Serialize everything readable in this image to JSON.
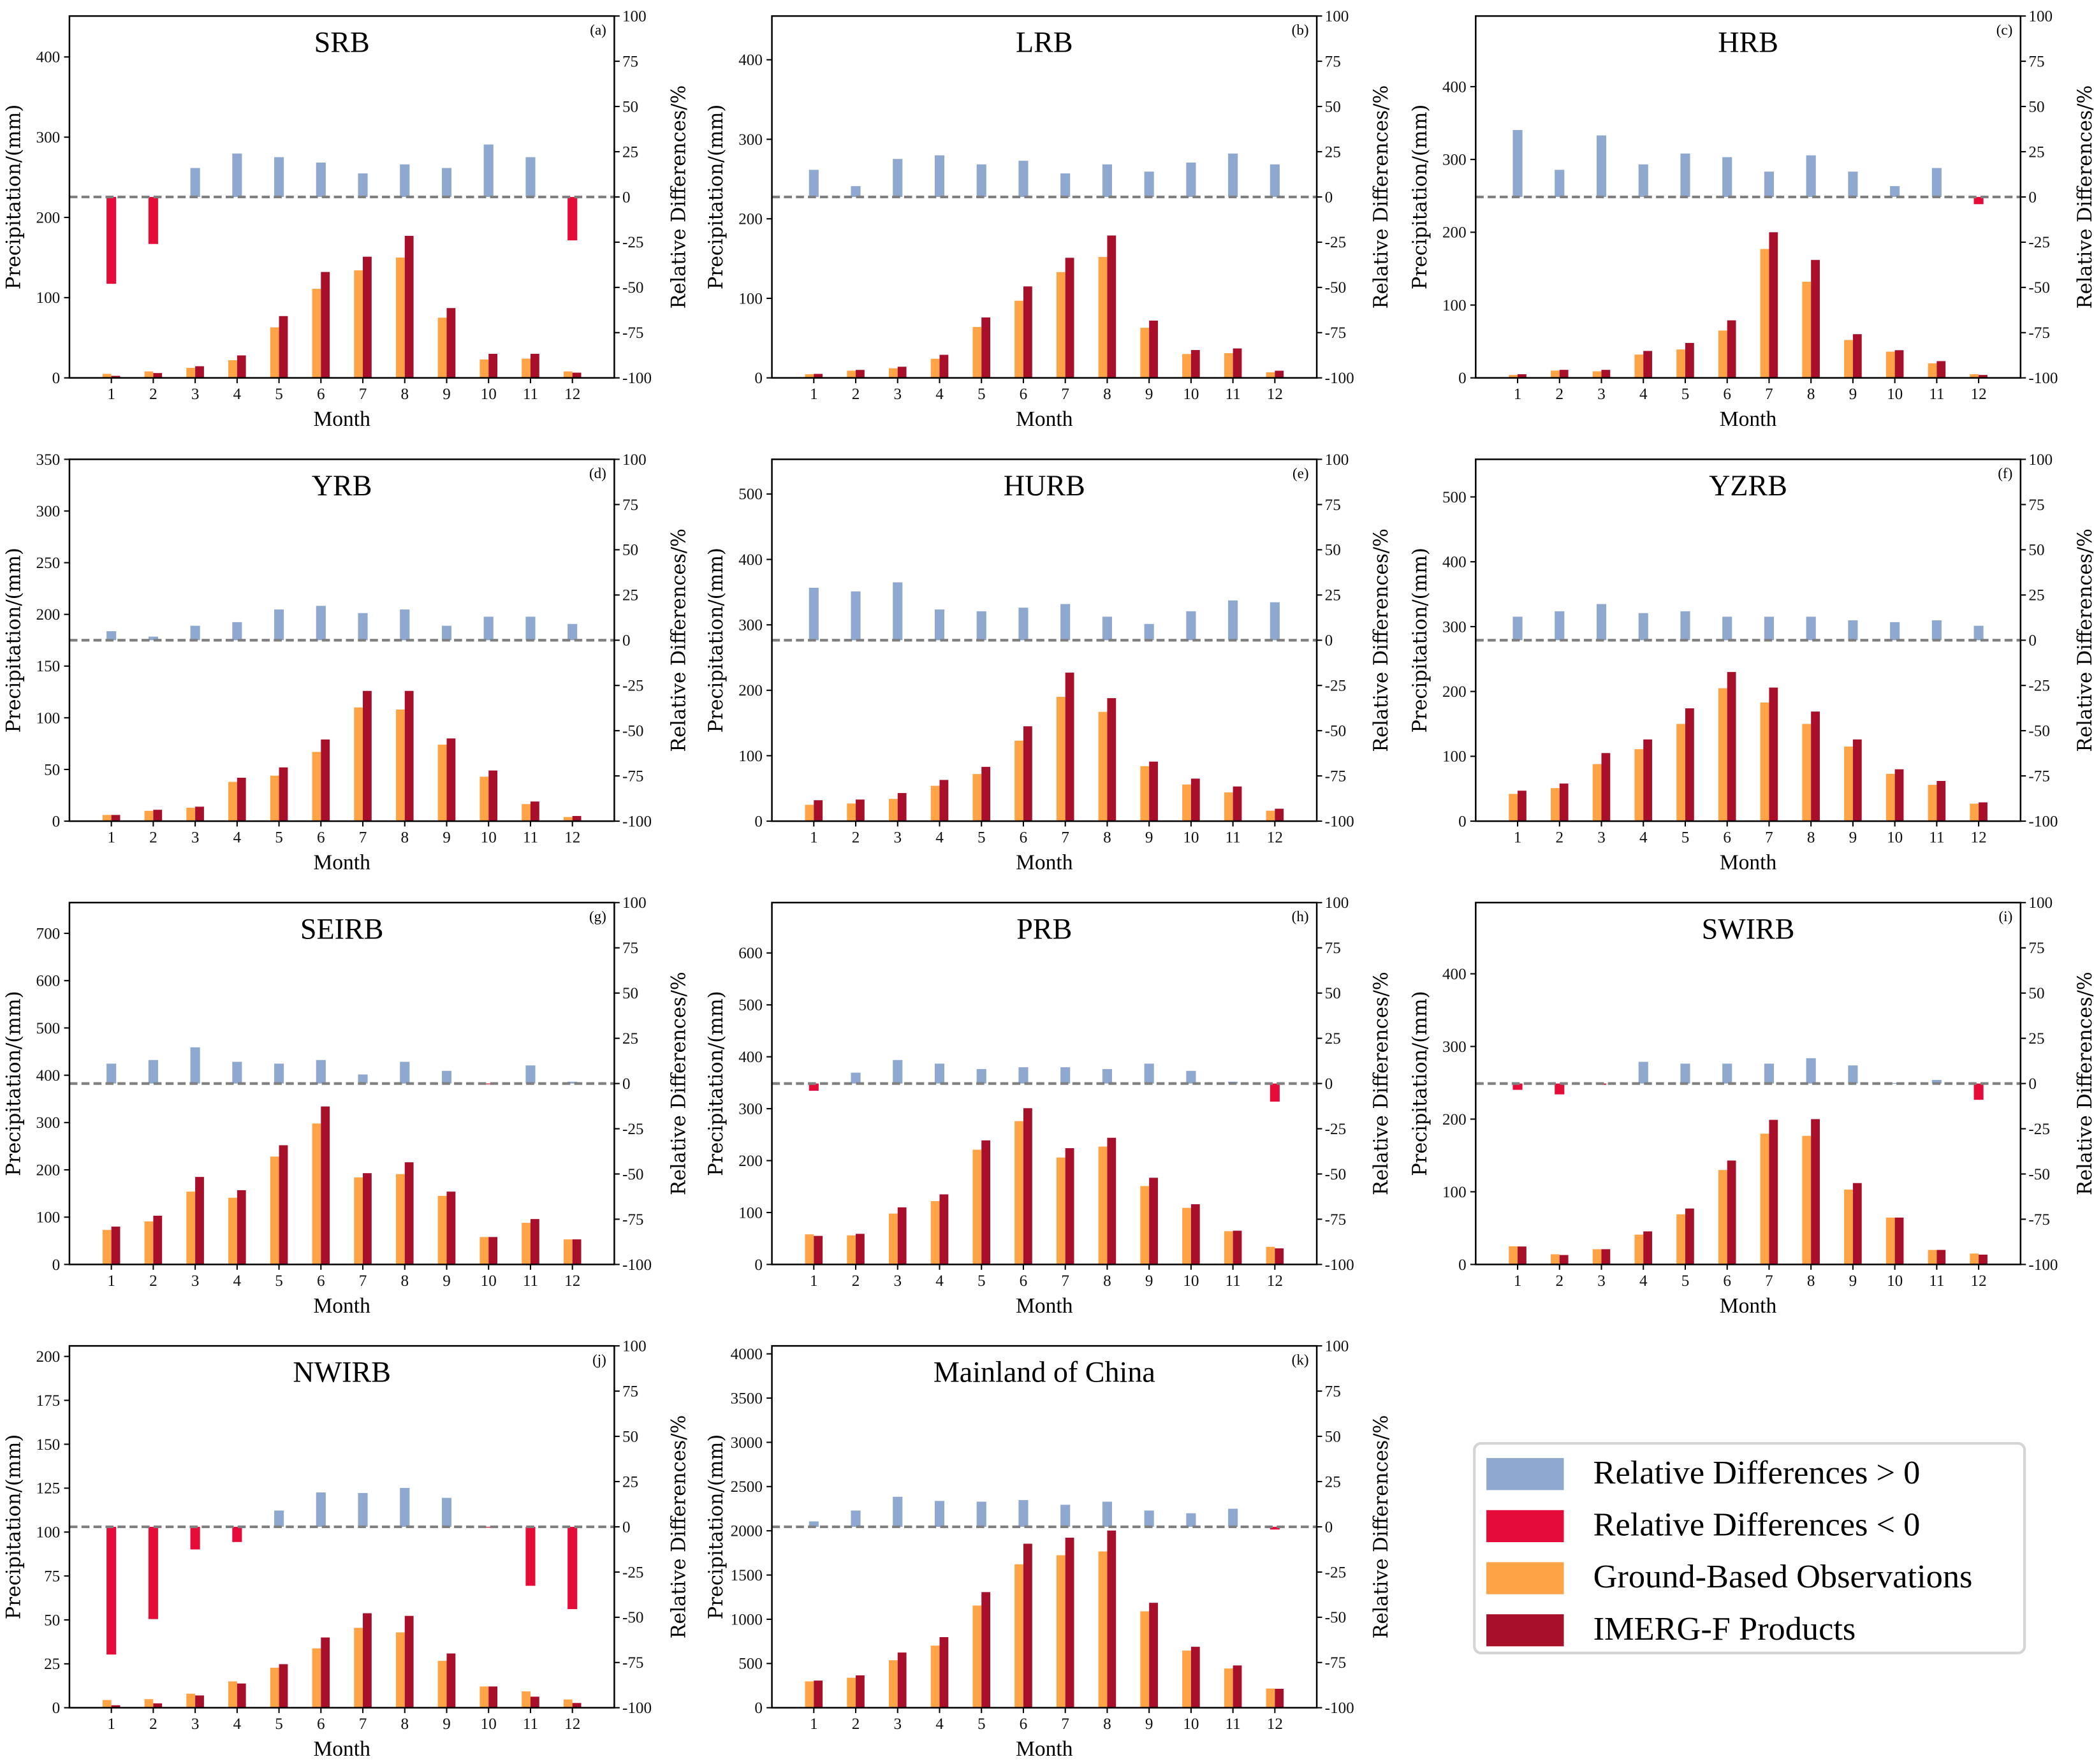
{
  "colors": {
    "rd_positive": "#8ea8cf",
    "rd_negative": "#e60c3a",
    "ground": "#ffa347",
    "imerg": "#a80f2b",
    "zero_line": "#808080"
  },
  "legend": [
    {
      "label": "Relative Differences > 0",
      "color": "#8ea8cf"
    },
    {
      "label": "Relative Differences < 0",
      "color": "#e60c3a"
    },
    {
      "label": "Ground-Based Observations",
      "color": "#ffa347"
    },
    {
      "label": "IMERG-F Products",
      "color": "#a80f2b"
    }
  ],
  "chart_data": [
    {
      "id": "a",
      "panel_label": "(a)",
      "title": "SRB",
      "type": "bar",
      "xlabel": "Month",
      "ylabel": "Precipitation/(mm)",
      "y2label": "Relative Differences/%",
      "categories": [
        1,
        2,
        3,
        4,
        5,
        6,
        7,
        8,
        9,
        10,
        11,
        12
      ],
      "ylim": [
        0,
        451
      ],
      "yticks": [
        0,
        100,
        200,
        300,
        400
      ],
      "y2lim": [
        -100,
        100
      ],
      "y2ticks": [
        -100,
        -75,
        -50,
        -25,
        0,
        25,
        50,
        75,
        100
      ],
      "series": [
        {
          "name": "Ground-Based Observations",
          "values": [
            5,
            8,
            12.5,
            22,
            63,
            111,
            134,
            150,
            75,
            23,
            24,
            8
          ]
        },
        {
          "name": "IMERG-F Products",
          "values": [
            2.5,
            6,
            14.5,
            28,
            77,
            132,
            151,
            177,
            87,
            30,
            30,
            6.5
          ]
        },
        {
          "name": "Relative Differences",
          "values": [
            -48,
            -26,
            16,
            24,
            22,
            19,
            13,
            18,
            16,
            29,
            22,
            -24
          ]
        }
      ]
    },
    {
      "id": "b",
      "panel_label": "(b)",
      "title": "LRB",
      "type": "bar",
      "xlabel": "Month",
      "ylabel": "Precipitation/(mm)",
      "y2label": "Relative Differences/%",
      "categories": [
        1,
        2,
        3,
        4,
        5,
        6,
        7,
        8,
        9,
        10,
        11,
        12
      ],
      "ylim": [
        0,
        455
      ],
      "yticks": [
        0,
        100,
        200,
        300,
        400
      ],
      "y2lim": [
        -100,
        100
      ],
      "y2ticks": [
        -100,
        -75,
        -50,
        -25,
        0,
        25,
        50,
        75,
        100
      ],
      "series": [
        {
          "name": "Ground-Based Observations",
          "values": [
            4.6,
            9,
            12,
            24,
            64,
            97,
            133,
            152,
            63,
            30,
            31,
            7
          ]
        },
        {
          "name": "IMERG-F Products",
          "values": [
            5,
            10,
            14,
            29,
            76,
            115,
            151,
            179,
            72,
            35,
            37,
            9
          ]
        },
        {
          "name": "Relative Differences",
          "values": [
            15,
            6,
            21,
            23,
            18,
            20,
            13,
            18,
            14,
            19,
            24,
            18
          ]
        }
      ]
    },
    {
      "id": "c",
      "panel_label": "(c)",
      "title": "HRB",
      "type": "bar",
      "xlabel": "Month",
      "ylabel": "Precipitation/(mm)",
      "y2label": "Relative Differences/%",
      "categories": [
        1,
        2,
        3,
        4,
        5,
        6,
        7,
        8,
        9,
        10,
        11,
        12
      ],
      "ylim": [
        0,
        497
      ],
      "yticks": [
        0,
        100,
        200,
        300,
        400
      ],
      "y2lim": [
        -100,
        100
      ],
      "y2ticks": [
        -100,
        -75,
        -50,
        -25,
        0,
        25,
        50,
        75,
        100
      ],
      "series": [
        {
          "name": "Ground-Based Observations",
          "values": [
            4,
            10,
            9,
            32,
            39,
            65,
            177,
            132,
            52,
            36,
            20,
            5
          ]
        },
        {
          "name": "IMERG-F Products",
          "values": [
            5,
            11,
            11,
            37,
            48,
            79,
            200,
            162,
            60,
            38,
            23,
            4
          ]
        },
        {
          "name": "Relative Differences",
          "values": [
            37,
            15,
            34,
            18,
            24,
            22,
            14,
            23,
            14,
            6,
            16,
            -4
          ]
        }
      ]
    },
    {
      "id": "d",
      "panel_label": "(d)",
      "title": "YRB",
      "type": "bar",
      "xlabel": "Month",
      "ylabel": "Precipitation/(mm)",
      "y2label": "Relative Differences/%",
      "categories": [
        1,
        2,
        3,
        4,
        5,
        6,
        7,
        8,
        9,
        10,
        11,
        12
      ],
      "ylim": [
        0,
        350
      ],
      "yticks": [
        0,
        50,
        100,
        150,
        200,
        250,
        300,
        350
      ],
      "y2lim": [
        -100,
        100
      ],
      "y2ticks": [
        -100,
        -75,
        -50,
        -25,
        0,
        25,
        50,
        75,
        100
      ],
      "series": [
        {
          "name": "Ground-Based Observations",
          "values": [
            6,
            10,
            13,
            38,
            44,
            67,
            110,
            108,
            74,
            43,
            16.5,
            4
          ]
        },
        {
          "name": "IMERG-F Products",
          "values": [
            6,
            11,
            14,
            42,
            52,
            79,
            126,
            126,
            80,
            49,
            19,
            5
          ]
        },
        {
          "name": "Relative Differences",
          "values": [
            5,
            2,
            8,
            10,
            17,
            19,
            15,
            17,
            8,
            13,
            13,
            9
          ]
        }
      ]
    },
    {
      "id": "e",
      "panel_label": "(e)",
      "title": "HURB",
      "type": "bar",
      "xlabel": "Month",
      "ylabel": "Precipitation/(mm)",
      "y2label": "Relative Differences/%",
      "categories": [
        1,
        2,
        3,
        4,
        5,
        6,
        7,
        8,
        9,
        10,
        11,
        12
      ],
      "ylim": [
        0,
        553
      ],
      "yticks": [
        0,
        100,
        200,
        300,
        400,
        500
      ],
      "y2lim": [
        -100,
        100
      ],
      "y2ticks": [
        -100,
        -75,
        -50,
        -25,
        0,
        25,
        50,
        75,
        100
      ],
      "series": [
        {
          "name": "Ground-Based Observations",
          "values": [
            25,
            27,
            34,
            54,
            72,
            123,
            190,
            167,
            84,
            56,
            44,
            16
          ]
        },
        {
          "name": "IMERG-F Products",
          "values": [
            32,
            33,
            43,
            63,
            83,
            145,
            227,
            188,
            91,
            65,
            53,
            19
          ]
        },
        {
          "name": "Relative Differences",
          "values": [
            29,
            27,
            32,
            17,
            16,
            18,
            20,
            13,
            9,
            16,
            22,
            21
          ]
        }
      ]
    },
    {
      "id": "f",
      "panel_label": "(f)",
      "title": "YZRB",
      "type": "bar",
      "xlabel": "Month",
      "ylabel": "Precipitation/(mm)",
      "y2label": "Relative Differences/%",
      "categories": [
        1,
        2,
        3,
        4,
        5,
        6,
        7,
        8,
        9,
        10,
        11,
        12
      ],
      "ylim": [
        0,
        558
      ],
      "yticks": [
        0,
        100,
        200,
        300,
        400,
        500
      ],
      "y2lim": [
        -100,
        100
      ],
      "y2ticks": [
        -100,
        -75,
        -50,
        -25,
        0,
        25,
        50,
        75,
        100
      ],
      "series": [
        {
          "name": "Ground-Based Observations",
          "values": [
            42,
            51,
            88,
            111,
            150,
            205,
            183,
            150,
            115,
            73,
            56,
            27
          ]
        },
        {
          "name": "IMERG-F Products",
          "values": [
            47,
            58,
            105,
            126,
            174,
            230,
            206,
            169,
            126,
            80,
            62,
            29
          ]
        },
        {
          "name": "Relative Differences",
          "values": [
            13,
            16,
            20,
            15,
            16,
            13,
            13,
            13,
            11,
            10,
            11,
            8
          ]
        }
      ]
    },
    {
      "id": "g",
      "panel_label": "(g)",
      "title": "SEIRB",
      "type": "bar",
      "xlabel": "Month",
      "ylabel": "Precipitation/(mm)",
      "y2label": "Relative Differences/%",
      "categories": [
        1,
        2,
        3,
        4,
        5,
        6,
        7,
        8,
        9,
        10,
        11,
        12
      ],
      "ylim": [
        0,
        765
      ],
      "yticks": [
        0,
        100,
        200,
        300,
        400,
        500,
        600,
        700
      ],
      "y2lim": [
        -100,
        100
      ],
      "y2ticks": [
        -100,
        -75,
        -50,
        -25,
        0,
        25,
        50,
        75,
        100
      ],
      "series": [
        {
          "name": "Ground-Based Observations",
          "values": [
            73,
            91,
            154,
            141,
            228,
            298,
            184,
            191,
            145,
            58,
            88,
            53
          ]
        },
        {
          "name": "IMERG-F Products",
          "values": [
            80,
            103,
            185,
            157,
            252,
            334,
            193,
            216,
            154,
            58,
            96,
            53
          ]
        },
        {
          "name": "Relative Differences",
          "values": [
            11,
            13,
            20,
            12,
            11,
            13,
            5,
            12,
            7,
            -0.3,
            10,
            1
          ]
        }
      ]
    },
    {
      "id": "h",
      "panel_label": "(h)",
      "title": "PRB",
      "type": "bar",
      "xlabel": "Month",
      "ylabel": "Precipitation/(mm)",
      "y2label": "Relative Differences/%",
      "categories": [
        1,
        2,
        3,
        4,
        5,
        6,
        7,
        8,
        9,
        10,
        11,
        12
      ],
      "ylim": [
        0,
        697
      ],
      "yticks": [
        0,
        100,
        200,
        300,
        400,
        500,
        600
      ],
      "y2lim": [
        -100,
        100
      ],
      "y2ticks": [
        -100,
        -75,
        -50,
        -25,
        0,
        25,
        50,
        75,
        100
      ],
      "series": [
        {
          "name": "Ground-Based Observations",
          "values": [
            58,
            56,
            98,
            122,
            221,
            276,
            206,
            227,
            151,
            109,
            64,
            34
          ]
        },
        {
          "name": "IMERG-F Products",
          "values": [
            55,
            59,
            110,
            135,
            239,
            301,
            224,
            244,
            167,
            116,
            65,
            31
          ]
        },
        {
          "name": "Relative Differences",
          "values": [
            -4,
            6,
            13,
            11,
            8,
            9,
            9,
            8,
            11,
            7,
            1,
            -10
          ]
        }
      ]
    },
    {
      "id": "i",
      "panel_label": "(i)",
      "title": "SWIRB",
      "type": "bar",
      "xlabel": "Month",
      "ylabel": "Precipitation/(mm)",
      "y2label": "Relative Differences/%",
      "categories": [
        1,
        2,
        3,
        4,
        5,
        6,
        7,
        8,
        9,
        10,
        11,
        12
      ],
      "ylim": [
        0,
        498
      ],
      "yticks": [
        0,
        100,
        200,
        300,
        400
      ],
      "y2lim": [
        -100,
        100
      ],
      "y2ticks": [
        -100,
        -75,
        -50,
        -25,
        0,
        25,
        50,
        75,
        100
      ],
      "series": [
        {
          "name": "Ground-Based Observations",
          "values": [
            25,
            14,
            21,
            41,
            69,
            130,
            180,
            177,
            103,
            64.5,
            20,
            15
          ]
        },
        {
          "name": "IMERG-F Products",
          "values": [
            24.7,
            13,
            21,
            45.5,
            77,
            143,
            199,
            200,
            112,
            64.5,
            20,
            13.5
          ]
        },
        {
          "name": "Relative Differences",
          "values": [
            -3.5,
            -6,
            -0.7,
            12,
            11,
            11,
            11,
            14,
            10,
            0.3,
            2,
            -9
          ]
        }
      ]
    },
    {
      "id": "j",
      "panel_label": "(j)",
      "title": "NWIRB",
      "type": "bar",
      "xlabel": "Month",
      "ylabel": "Precipitation/(mm)",
      "y2label": "Relative Differences/%",
      "categories": [
        1,
        2,
        3,
        4,
        5,
        6,
        7,
        8,
        9,
        10,
        11,
        12
      ],
      "ylim": [
        0,
        206
      ],
      "yticks": [
        0,
        25,
        50,
        75,
        100,
        125,
        150,
        175,
        200
      ],
      "y2lim": [
        -100,
        100
      ],
      "y2ticks": [
        -100,
        -75,
        -50,
        -25,
        0,
        25,
        50,
        75,
        100
      ],
      "series": [
        {
          "name": "Ground-Based Observations",
          "values": [
            4.4,
            4.9,
            8,
            15,
            22.8,
            33.8,
            45.5,
            42.9,
            26.7,
            12.1,
            9.3,
            4.7
          ]
        },
        {
          "name": "IMERG-F Products",
          "values": [
            1.4,
            2.5,
            7,
            13.8,
            24.8,
            40,
            53.8,
            52.3,
            30.9,
            12.1,
            6.3,
            2.7
          ]
        },
        {
          "name": "Relative Differences",
          "values": [
            -70.6,
            -51,
            -12.5,
            -8.4,
            9,
            19,
            18.7,
            21.5,
            16,
            -0.3,
            -32.6,
            -45.5
          ]
        }
      ]
    },
    {
      "id": "k",
      "panel_label": "(k)",
      "title": "Mainland of China",
      "type": "bar",
      "xlabel": "Month",
      "ylabel": "Precipitation/(mm)",
      "y2label": "Relative Differences/%",
      "categories": [
        1,
        2,
        3,
        4,
        5,
        6,
        7,
        8,
        9,
        10,
        11,
        12
      ],
      "ylim": [
        0,
        4090
      ],
      "yticks": [
        0,
        500,
        1000,
        1500,
        2000,
        2500,
        3000,
        3500,
        4000
      ],
      "y2lim": [
        -100,
        100
      ],
      "y2ticks": [
        -100,
        -75,
        -50,
        -25,
        0,
        25,
        50,
        75,
        100
      ],
      "series": [
        {
          "name": "Ground-Based Observations",
          "values": [
            298,
            339,
            537,
            702,
            1155,
            1621,
            1724,
            1767,
            1090,
            646,
            444,
            217
          ]
        },
        {
          "name": "IMERG-F Products",
          "values": [
            307,
            366,
            624,
            798,
            1307,
            1854,
            1922,
            2003,
            1186,
            689,
            478,
            214
          ]
        },
        {
          "name": "Relative Differences",
          "values": [
            3,
            9,
            16.6,
            14.3,
            13.9,
            14.8,
            12.2,
            13.9,
            9,
            7.5,
            10,
            -1.5
          ]
        }
      ]
    }
  ]
}
